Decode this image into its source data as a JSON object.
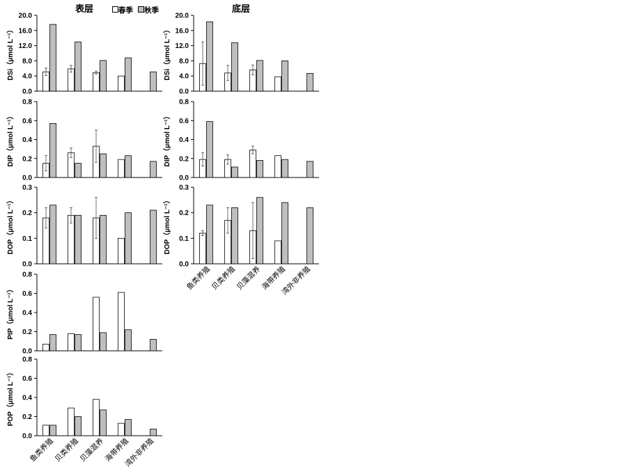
{
  "figure": {
    "left_title": "表层",
    "right_title": "底层"
  },
  "legend": [
    {
      "label": "春季",
      "color": "#ffffff"
    },
    {
      "label": "秋季",
      "color": "#bfbfbf"
    }
  ],
  "categories": [
    "鱼类养殖",
    "贝类养殖",
    "贝藻混养",
    "海带养殖",
    "湾外非养殖"
  ],
  "chart_data": [
    {
      "type": "bar",
      "column": "left",
      "row": 0,
      "ylabel": "DSi（μmol L⁻¹）",
      "ylim": [
        0,
        20
      ],
      "yticks": [
        "0.0",
        "4.0",
        "8.0",
        "12.0",
        "16.0",
        "20.0"
      ],
      "ytick_values": [
        0,
        4,
        8,
        12,
        16,
        20
      ],
      "series": [
        {
          "name": "春季",
          "values": [
            5.1,
            5.9,
            4.9,
            4.0,
            null
          ],
          "errors": [
            1.0,
            0.9,
            0.4,
            null,
            null
          ]
        },
        {
          "name": "秋季",
          "values": [
            17.6,
            13.0,
            8.1,
            8.8,
            5.1
          ],
          "errors": [
            null,
            null,
            null,
            null,
            null
          ]
        }
      ]
    },
    {
      "type": "bar",
      "column": "right",
      "row": 0,
      "ylabel": "DSi（μmol L⁻¹）",
      "ylim": [
        0,
        20
      ],
      "yticks": [
        "0.0",
        "4.0",
        "8.0",
        "12.0",
        "16.0",
        "20.0"
      ],
      "ytick_values": [
        0,
        4,
        8,
        12,
        16,
        20
      ],
      "series": [
        {
          "name": "春季",
          "values": [
            7.3,
            4.8,
            5.6,
            3.8,
            null
          ],
          "errors": [
            5.7,
            2.0,
            1.3,
            null,
            null
          ]
        },
        {
          "name": "秋季",
          "values": [
            18.3,
            12.8,
            8.1,
            8.0,
            4.7
          ],
          "errors": [
            null,
            null,
            null,
            null,
            null
          ]
        }
      ]
    },
    {
      "type": "bar",
      "column": "left",
      "row": 1,
      "ylabel": "DIP（μmol L⁻¹）",
      "ylim": [
        0,
        0.8
      ],
      "yticks": [
        "0.0",
        "0.2",
        "0.4",
        "0.6",
        "0.8"
      ],
      "ytick_values": [
        0,
        0.2,
        0.4,
        0.6,
        0.8
      ],
      "series": [
        {
          "name": "春季",
          "values": [
            0.15,
            0.26,
            0.33,
            0.19,
            null
          ],
          "errors": [
            0.08,
            0.05,
            0.17,
            null,
            null
          ]
        },
        {
          "name": "秋季",
          "values": [
            0.57,
            0.15,
            0.25,
            0.23,
            0.17
          ],
          "errors": [
            null,
            null,
            null,
            null,
            null
          ]
        }
      ]
    },
    {
      "type": "bar",
      "column": "right",
      "row": 1,
      "ylabel": "DIP（μmol L⁻¹）",
      "ylim": [
        0,
        0.8
      ],
      "yticks": [
        "0.0",
        "0.2",
        "0.4",
        "0.6",
        "0.8"
      ],
      "ytick_values": [
        0,
        0.2,
        0.4,
        0.6,
        0.8
      ],
      "series": [
        {
          "name": "春季",
          "values": [
            0.19,
            0.19,
            0.29,
            0.23,
            null
          ],
          "errors": [
            0.07,
            0.05,
            0.04,
            null,
            null
          ]
        },
        {
          "name": "秋季",
          "values": [
            0.59,
            0.11,
            0.18,
            0.19,
            0.17
          ],
          "errors": [
            null,
            null,
            null,
            null,
            null
          ]
        }
      ]
    },
    {
      "type": "bar",
      "column": "left",
      "row": 2,
      "ylabel": "DOP（μmol L⁻¹）",
      "ylim": [
        0,
        0.3
      ],
      "yticks": [
        "0.0",
        "0.1",
        "0.2",
        "0.3"
      ],
      "ytick_values": [
        0,
        0.1,
        0.2,
        0.3
      ],
      "series": [
        {
          "name": "春季",
          "values": [
            0.18,
            0.19,
            0.18,
            0.1,
            null
          ],
          "errors": [
            0.04,
            0.03,
            0.08,
            null,
            null
          ]
        },
        {
          "name": "秋季",
          "values": [
            0.23,
            0.19,
            0.19,
            0.2,
            0.21
          ],
          "errors": [
            null,
            null,
            null,
            null,
            null
          ]
        }
      ]
    },
    {
      "type": "bar",
      "column": "right",
      "row": 2,
      "ylabel": "DOP（μmol L⁻¹）",
      "ylim": [
        0,
        0.3
      ],
      "yticks": [
        "0.0",
        "0.1",
        "0.2",
        "0.3"
      ],
      "ytick_values": [
        0,
        0.1,
        0.2,
        0.3
      ],
      "series": [
        {
          "name": "春季",
          "values": [
            0.12,
            0.17,
            0.13,
            0.09,
            null
          ],
          "errors": [
            0.01,
            0.05,
            0.11,
            null,
            null
          ]
        },
        {
          "name": "秋季",
          "values": [
            0.23,
            0.22,
            0.26,
            0.24,
            0.22
          ],
          "errors": [
            null,
            null,
            null,
            null,
            null
          ]
        }
      ]
    },
    {
      "type": "bar",
      "column": "left",
      "row": 3,
      "ylabel": "PIP（μmol L⁻¹）",
      "ylim": [
        0,
        0.8
      ],
      "yticks": [
        "0.0",
        "0.2",
        "0.4",
        "0.6",
        "0.8"
      ],
      "ytick_values": [
        0,
        0.2,
        0.4,
        0.6,
        0.8
      ],
      "series": [
        {
          "name": "春季",
          "values": [
            0.07,
            0.18,
            0.56,
            0.61,
            null
          ],
          "errors": [
            null,
            null,
            null,
            null,
            null
          ]
        },
        {
          "name": "秋季",
          "values": [
            0.17,
            0.17,
            0.19,
            0.22,
            0.12
          ],
          "errors": [
            null,
            null,
            null,
            null,
            null
          ]
        }
      ]
    },
    {
      "type": "bar",
      "column": "left",
      "row": 4,
      "ylabel": "POP（μmol L⁻¹）",
      "ylim": [
        0,
        0.8
      ],
      "yticks": [
        "0.0",
        "0.2",
        "0.4",
        "0.6",
        "0.8"
      ],
      "ytick_values": [
        0,
        0.2,
        0.4,
        0.6,
        0.8
      ],
      "series": [
        {
          "name": "春季",
          "values": [
            0.11,
            0.29,
            0.38,
            0.13,
            null
          ],
          "errors": [
            null,
            null,
            null,
            null,
            null
          ]
        },
        {
          "name": "秋季",
          "values": [
            0.11,
            0.2,
            0.27,
            0.17,
            0.07
          ],
          "errors": [
            null,
            null,
            null,
            null,
            null
          ]
        }
      ]
    }
  ]
}
